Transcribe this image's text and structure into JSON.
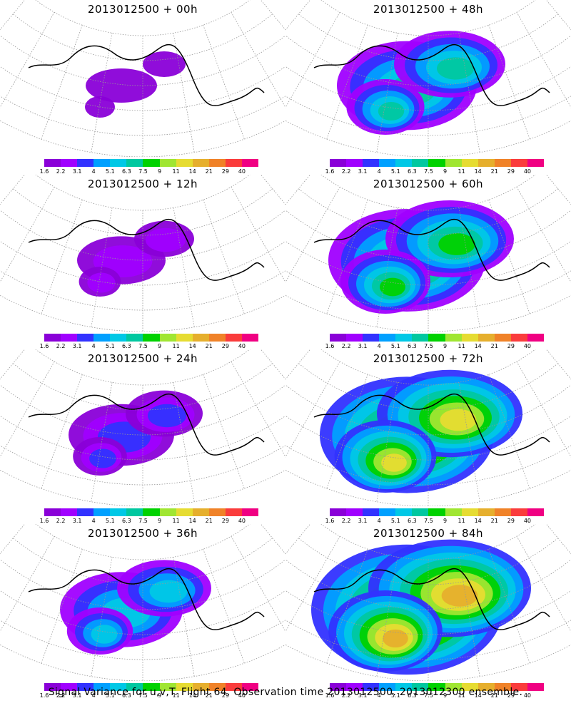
{
  "panels": [
    {
      "title": "2013012500 + 00h",
      "intensity": 0
    },
    {
      "title": "2013012500 + 48h",
      "intensity": 4
    },
    {
      "title": "2013012500 + 12h",
      "intensity": 1
    },
    {
      "title": "2013012500 + 60h",
      "intensity": 5
    },
    {
      "title": "2013012500 + 24h",
      "intensity": 2
    },
    {
      "title": "2013012500 + 72h",
      "intensity": 6
    },
    {
      "title": "2013012500 + 36h",
      "intensity": 3
    },
    {
      "title": "2013012500 + 84h",
      "intensity": 7
    }
  ],
  "colorbar": {
    "colors": [
      "#8a00d8",
      "#a000ff",
      "#3232ff",
      "#00a0ff",
      "#00c8e6",
      "#00c8a0",
      "#00d200",
      "#a0e632",
      "#e6dc32",
      "#e6af2d",
      "#f08228",
      "#fa3c3c",
      "#f00082"
    ],
    "labels": [
      "1.6",
      "2.2",
      "3.1",
      "4",
      "5.1",
      "6.3",
      "7.5",
      "9",
      "11",
      "14",
      "21",
      "29",
      "40"
    ]
  },
  "footer": "Signal Variance for u,v,T. Flight 64. Observation time 2013012500. 2013012300 ensemble."
}
